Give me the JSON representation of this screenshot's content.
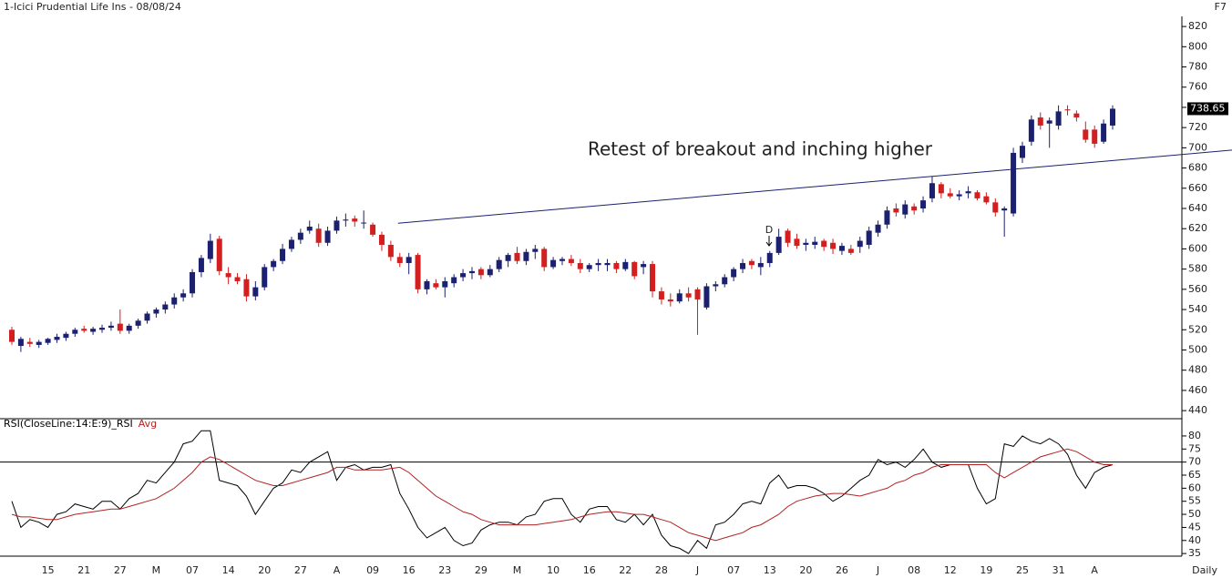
{
  "chart_data": [
    {
      "type": "candlestick",
      "title": "1-Icici Prudential Life Ins - 08/08/24",
      "corner_label": "F7",
      "interval": "Daily",
      "annotation": "Retest of breakout and inching higher",
      "event_marker": "D",
      "up_color": "#1b2070",
      "down_color": "#d21f1f",
      "categories": [
        null,
        null,
        null,
        null,
        "15",
        null,
        null,
        null,
        "21",
        null,
        null,
        null,
        "27",
        null,
        null,
        null,
        "M",
        null,
        null,
        null,
        "07",
        null,
        null,
        null,
        "14",
        null,
        null,
        null,
        "20",
        null,
        null,
        null,
        "27",
        null,
        null,
        null,
        "A",
        null,
        null,
        null,
        "09",
        null,
        null,
        null,
        "16",
        null,
        null,
        null,
        "23",
        null,
        null,
        null,
        "29",
        null,
        null,
        null,
        "M",
        null,
        null,
        null,
        "10",
        null,
        null,
        null,
        "16",
        null,
        null,
        null,
        "22",
        null,
        null,
        null,
        "28",
        null,
        null,
        null,
        "J",
        null,
        null,
        null,
        "07",
        null,
        null,
        null,
        "13",
        null,
        null,
        null,
        "20",
        null,
        null,
        null,
        "26",
        null,
        null,
        null,
        "J",
        null,
        null,
        null,
        "08",
        null,
        null,
        null,
        "12",
        null,
        null,
        null,
        "19",
        null,
        null,
        null,
        "25",
        null,
        null,
        null,
        "31",
        null,
        null,
        null,
        "A",
        null,
        null
      ],
      "open": [
        520,
        504,
        508,
        505,
        507,
        510,
        512,
        516,
        521,
        518,
        520,
        522,
        526,
        519,
        524,
        529,
        536,
        540,
        545,
        552,
        556,
        577,
        590,
        610,
        576,
        572,
        570,
        553,
        562,
        582,
        588,
        600,
        609,
        618,
        620,
        606,
        618,
        628,
        630,
        626,
        624,
        614,
        604,
        592,
        586,
        594,
        560,
        566,
        562,
        566,
        572,
        576,
        580,
        574,
        580,
        588,
        596,
        588,
        597,
        600,
        582,
        588,
        590,
        586,
        580,
        584,
        584,
        586,
        580,
        587,
        582,
        585,
        558,
        550,
        548,
        556,
        560,
        542,
        563,
        565,
        572,
        580,
        588,
        582,
        586,
        596,
        618,
        610,
        604,
        604,
        608,
        606,
        598,
        600,
        602,
        604,
        616,
        624,
        640,
        634,
        642,
        640,
        650,
        664,
        655,
        652,
        655,
        656,
        652,
        646,
        638,
        635,
        690,
        706,
        730,
        724,
        722,
        738,
        734,
        718,
        718,
        706,
        722
      ],
      "high": [
        523,
        513,
        512,
        510,
        512,
        516,
        518,
        522,
        524,
        523,
        525,
        528,
        540,
        526,
        531,
        538,
        542,
        548,
        556,
        560,
        580,
        594,
        615,
        613,
        582,
        576,
        575,
        568,
        585,
        590,
        605,
        612,
        620,
        628,
        625,
        622,
        632,
        635,
        633,
        638,
        626,
        617,
        608,
        596,
        596,
        596,
        570,
        570,
        572,
        575,
        580,
        582,
        582,
        584,
        592,
        596,
        602,
        600,
        604,
        602,
        592,
        592,
        594,
        590,
        586,
        590,
        590,
        588,
        590,
        588,
        588,
        588,
        562,
        556,
        560,
        562,
        562,
        566,
        568,
        575,
        582,
        590,
        590,
        592,
        598,
        620,
        620,
        615,
        610,
        612,
        610,
        610,
        606,
        604,
        612,
        622,
        628,
        642,
        645,
        648,
        645,
        652,
        672,
        666,
        660,
        658,
        662,
        658,
        656,
        650,
        642,
        700,
        706,
        732,
        735,
        730,
        742,
        742,
        737,
        726,
        722,
        728,
        742
      ],
      "low": [
        505,
        498,
        503,
        502,
        505,
        507,
        509,
        513,
        517,
        515,
        517,
        519,
        516,
        516,
        521,
        526,
        532,
        536,
        541,
        548,
        552,
        572,
        586,
        574,
        565,
        565,
        548,
        549,
        559,
        578,
        585,
        597,
        605,
        615,
        602,
        603,
        615,
        622,
        622,
        620,
        612,
        598,
        588,
        582,
        575,
        556,
        555,
        560,
        552,
        562,
        568,
        570,
        570,
        572,
        577,
        582,
        585,
        584,
        590,
        578,
        580,
        584,
        583,
        576,
        577,
        578,
        578,
        576,
        578,
        570,
        575,
        552,
        545,
        543,
        546,
        548,
        515,
        540,
        558,
        562,
        568,
        576,
        580,
        574,
        582,
        594,
        602,
        600,
        598,
        600,
        598,
        595,
        594,
        594,
        596,
        600,
        612,
        620,
        632,
        630,
        634,
        636,
        646,
        650,
        650,
        648,
        650,
        648,
        644,
        632,
        612,
        632,
        685,
        702,
        718,
        700,
        718,
        732,
        726,
        705,
        700,
        704,
        718
      ],
      "close": [
        508,
        511,
        506,
        508,
        511,
        513,
        516,
        520,
        519,
        521,
        522,
        524,
        519,
        524,
        529,
        536,
        540,
        545,
        552,
        556,
        577,
        591,
        608,
        578,
        572,
        568,
        553,
        562,
        582,
        588,
        600,
        609,
        616,
        622,
        606,
        618,
        628,
        629,
        627,
        626,
        614,
        604,
        592,
        586,
        592,
        560,
        568,
        562,
        568,
        572,
        576,
        578,
        574,
        580,
        589,
        594,
        588,
        597,
        600,
        582,
        589,
        590,
        586,
        580,
        584,
        586,
        586,
        580,
        587,
        573,
        585,
        558,
        550,
        548,
        556,
        552,
        550,
        563,
        565,
        572,
        580,
        586,
        584,
        586,
        596,
        612,
        606,
        603,
        606,
        607,
        602,
        600,
        603,
        596,
        608,
        618,
        624,
        638,
        636,
        644,
        638,
        648,
        665,
        655,
        652,
        654,
        657,
        650,
        646,
        636,
        640,
        695,
        702,
        728,
        722,
        727,
        736,
        737,
        730,
        708,
        704,
        724,
        738.65
      ],
      "trendline": {
        "x": [
          42.8,
          135.3
        ],
        "y": [
          625.4,
          697.8
        ]
      },
      "ylim": [
        432,
        830
      ],
      "yticks": [
        440,
        460,
        480,
        500,
        520,
        540,
        560,
        580,
        600,
        620,
        640,
        660,
        680,
        700,
        720,
        740,
        760,
        780,
        800,
        820
      ]
    },
    {
      "type": "line",
      "ylim": [
        34,
        86.6
      ],
      "yticks": [
        35,
        40,
        45,
        50,
        55,
        60,
        65,
        70,
        75,
        80
      ],
      "hline": 70,
      "series": [
        {
          "name": "RSI(CloseLine:14:E:9)_RSI",
          "color": "#000000",
          "values": [
            55,
            45,
            48,
            47,
            45,
            50,
            51,
            54,
            53,
            52,
            55,
            55,
            52,
            56,
            58,
            63,
            62,
            66,
            70,
            77,
            78,
            82,
            82,
            63,
            62,
            61,
            57,
            50,
            55,
            60,
            62,
            67,
            66,
            70,
            72,
            74,
            63,
            68,
            69,
            67,
            68,
            68,
            69,
            58,
            52,
            45,
            41,
            43,
            45,
            40,
            38,
            39,
            44,
            46,
            47,
            47,
            46,
            49,
            50,
            55,
            56,
            56,
            50,
            47,
            52,
            53,
            53,
            48,
            47,
            50,
            46,
            50,
            42,
            38,
            37,
            35,
            40,
            37,
            46,
            47,
            50,
            54,
            55,
            54,
            62,
            65,
            60,
            61,
            61,
            60,
            58,
            55,
            57,
            60,
            63,
            65,
            71,
            69,
            70,
            68,
            71,
            75,
            70,
            68,
            69,
            69,
            69,
            60,
            54,
            56,
            77,
            76,
            80,
            78,
            77,
            79,
            77,
            73,
            65,
            60,
            66,
            68,
            69
          ]
        },
        {
          "name": "Avg",
          "color": "#b22222",
          "values": [
            50,
            49,
            49,
            48.5,
            48,
            48,
            49,
            50,
            50.5,
            51,
            51.5,
            52,
            52,
            53,
            54,
            55,
            56,
            58,
            60,
            63,
            66,
            70,
            72,
            71,
            69,
            67,
            65,
            63,
            62,
            61,
            61,
            62,
            63,
            64,
            65,
            66,
            68,
            68,
            67,
            67,
            67,
            67,
            67.5,
            68,
            66,
            63,
            60,
            57,
            55,
            53,
            51,
            50,
            48,
            47,
            46,
            46,
            46,
            46,
            46,
            46.5,
            47,
            47.5,
            48,
            49,
            50,
            50.5,
            51,
            51,
            50.5,
            50,
            50,
            49,
            48,
            47,
            45,
            43,
            42,
            41,
            40,
            41,
            42,
            43,
            45,
            46,
            48,
            50,
            53,
            55,
            56,
            57,
            57.5,
            58,
            58,
            57.5,
            57,
            58,
            59,
            60,
            62,
            63,
            65,
            66,
            68,
            69,
            69,
            69,
            69,
            69,
            69,
            66,
            64,
            66,
            68,
            70,
            72,
            73,
            74,
            75,
            74,
            72,
            70,
            69,
            69
          ]
        }
      ]
    }
  ]
}
